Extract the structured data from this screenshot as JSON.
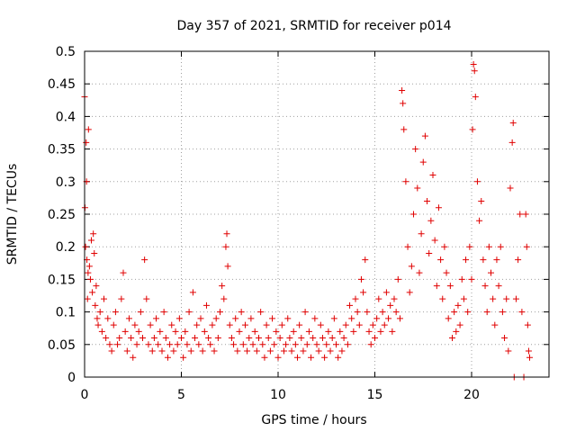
{
  "chart_data": {
    "type": "scatter",
    "title": "Day 357 of 2021, SRMTID for receiver p014",
    "xlabel": "GPS time / hours",
    "ylabel": "SRMTID / TECUs",
    "xlim": [
      0,
      24
    ],
    "ylim": [
      0,
      0.5
    ],
    "x_ticks": [
      0,
      5,
      10,
      15,
      20
    ],
    "x_tick_labels": [
      "0",
      "5",
      "10",
      "15",
      "20"
    ],
    "y_ticks": [
      0,
      0.05,
      0.1,
      0.15,
      0.2,
      0.25,
      0.3,
      0.35,
      0.4,
      0.45,
      0.5
    ],
    "y_tick_labels": [
      "0",
      "0.05",
      "0.1",
      "0.15",
      "0.2",
      "0.25",
      "0.3",
      "0.35",
      "0.4",
      "0.45",
      "0.5"
    ],
    "grid": true,
    "marker": "+",
    "color": "#e00000",
    "series": [
      {
        "name": "SRMTID",
        "points": [
          [
            0.0,
            0.43
          ],
          [
            0.02,
            0.26
          ],
          [
            0.05,
            0.2
          ],
          [
            0.08,
            0.36
          ],
          [
            0.1,
            0.3
          ],
          [
            0.12,
            0.18
          ],
          [
            0.15,
            0.12
          ],
          [
            0.18,
            0.16
          ],
          [
            0.2,
            0.38
          ],
          [
            0.25,
            0.17
          ],
          [
            0.3,
            0.15
          ],
          [
            0.35,
            0.21
          ],
          [
            0.4,
            0.13
          ],
          [
            0.45,
            0.22
          ],
          [
            0.5,
            0.19
          ],
          [
            0.55,
            0.11
          ],
          [
            0.6,
            0.14
          ],
          [
            0.65,
            0.09
          ],
          [
            0.7,
            0.08
          ],
          [
            0.8,
            0.1
          ],
          [
            0.9,
            0.07
          ],
          [
            1.0,
            0.12
          ],
          [
            1.1,
            0.06
          ],
          [
            1.2,
            0.09
          ],
          [
            1.3,
            0.05
          ],
          [
            1.4,
            0.04
          ],
          [
            1.5,
            0.08
          ],
          [
            1.6,
            0.1
          ],
          [
            1.7,
            0.05
          ],
          [
            1.8,
            0.06
          ],
          [
            1.9,
            0.12
          ],
          [
            2.0,
            0.16
          ],
          [
            2.1,
            0.07
          ],
          [
            2.2,
            0.04
          ],
          [
            2.3,
            0.09
          ],
          [
            2.4,
            0.06
          ],
          [
            2.5,
            0.03
          ],
          [
            2.6,
            0.08
          ],
          [
            2.7,
            0.05
          ],
          [
            2.8,
            0.07
          ],
          [
            2.9,
            0.1
          ],
          [
            3.0,
            0.06
          ],
          [
            3.1,
            0.18
          ],
          [
            3.2,
            0.12
          ],
          [
            3.3,
            0.05
          ],
          [
            3.4,
            0.08
          ],
          [
            3.5,
            0.04
          ],
          [
            3.6,
            0.06
          ],
          [
            3.7,
            0.09
          ],
          [
            3.8,
            0.05
          ],
          [
            3.9,
            0.07
          ],
          [
            4.0,
            0.04
          ],
          [
            4.1,
            0.1
          ],
          [
            4.2,
            0.06
          ],
          [
            4.3,
            0.03
          ],
          [
            4.4,
            0.05
          ],
          [
            4.5,
            0.08
          ],
          [
            4.6,
            0.04
          ],
          [
            4.7,
            0.07
          ],
          [
            4.8,
            0.05
          ],
          [
            4.9,
            0.09
          ],
          [
            5.0,
            0.06
          ],
          [
            5.1,
            0.03
          ],
          [
            5.2,
            0.07
          ],
          [
            5.3,
            0.05
          ],
          [
            5.4,
            0.1
          ],
          [
            5.5,
            0.04
          ],
          [
            5.6,
            0.13
          ],
          [
            5.7,
            0.06
          ],
          [
            5.8,
            0.08
          ],
          [
            5.9,
            0.05
          ],
          [
            6.0,
            0.09
          ],
          [
            6.1,
            0.04
          ],
          [
            6.2,
            0.07
          ],
          [
            6.3,
            0.11
          ],
          [
            6.4,
            0.06
          ],
          [
            6.5,
            0.05
          ],
          [
            6.6,
            0.08
          ],
          [
            6.7,
            0.04
          ],
          [
            6.8,
            0.09
          ],
          [
            6.9,
            0.06
          ],
          [
            7.0,
            0.1
          ],
          [
            7.1,
            0.14
          ],
          [
            7.2,
            0.12
          ],
          [
            7.3,
            0.2
          ],
          [
            7.35,
            0.22
          ],
          [
            7.4,
            0.17
          ],
          [
            7.5,
            0.08
          ],
          [
            7.6,
            0.06
          ],
          [
            7.7,
            0.05
          ],
          [
            7.8,
            0.09
          ],
          [
            7.9,
            0.04
          ],
          [
            8.0,
            0.07
          ],
          [
            8.1,
            0.1
          ],
          [
            8.2,
            0.05
          ],
          [
            8.3,
            0.08
          ],
          [
            8.4,
            0.04
          ],
          [
            8.5,
            0.06
          ],
          [
            8.6,
            0.09
          ],
          [
            8.7,
            0.05
          ],
          [
            8.8,
            0.07
          ],
          [
            8.9,
            0.04
          ],
          [
            9.0,
            0.06
          ],
          [
            9.1,
            0.1
          ],
          [
            9.2,
            0.05
          ],
          [
            9.3,
            0.03
          ],
          [
            9.4,
            0.08
          ],
          [
            9.5,
            0.06
          ],
          [
            9.6,
            0.04
          ],
          [
            9.7,
            0.09
          ],
          [
            9.8,
            0.05
          ],
          [
            9.9,
            0.07
          ],
          [
            10.0,
            0.03
          ],
          [
            10.1,
            0.06
          ],
          [
            10.2,
            0.08
          ],
          [
            10.3,
            0.04
          ],
          [
            10.4,
            0.05
          ],
          [
            10.5,
            0.09
          ],
          [
            10.6,
            0.06
          ],
          [
            10.7,
            0.04
          ],
          [
            10.8,
            0.07
          ],
          [
            10.9,
            0.05
          ],
          [
            11.0,
            0.03
          ],
          [
            11.1,
            0.08
          ],
          [
            11.2,
            0.06
          ],
          [
            11.3,
            0.04
          ],
          [
            11.4,
            0.1
          ],
          [
            11.5,
            0.05
          ],
          [
            11.6,
            0.07
          ],
          [
            11.7,
            0.03
          ],
          [
            11.8,
            0.06
          ],
          [
            11.9,
            0.09
          ],
          [
            12.0,
            0.05
          ],
          [
            12.1,
            0.04
          ],
          [
            12.2,
            0.08
          ],
          [
            12.3,
            0.06
          ],
          [
            12.4,
            0.03
          ],
          [
            12.5,
            0.05
          ],
          [
            12.6,
            0.07
          ],
          [
            12.7,
            0.04
          ],
          [
            12.8,
            0.06
          ],
          [
            12.9,
            0.09
          ],
          [
            13.0,
            0.05
          ],
          [
            13.1,
            0.03
          ],
          [
            13.2,
            0.07
          ],
          [
            13.3,
            0.04
          ],
          [
            13.4,
            0.06
          ],
          [
            13.5,
            0.08
          ],
          [
            13.6,
            0.05
          ],
          [
            13.7,
            0.11
          ],
          [
            13.8,
            0.09
          ],
          [
            13.9,
            0.07
          ],
          [
            14.0,
            0.12
          ],
          [
            14.1,
            0.1
          ],
          [
            14.2,
            0.08
          ],
          [
            14.3,
            0.15
          ],
          [
            14.4,
            0.13
          ],
          [
            14.5,
            0.18
          ],
          [
            14.6,
            0.1
          ],
          [
            14.7,
            0.07
          ],
          [
            14.8,
            0.05
          ],
          [
            14.9,
            0.08
          ],
          [
            15.0,
            0.06
          ],
          [
            15.1,
            0.09
          ],
          [
            15.2,
            0.12
          ],
          [
            15.3,
            0.07
          ],
          [
            15.4,
            0.1
          ],
          [
            15.5,
            0.08
          ],
          [
            15.6,
            0.13
          ],
          [
            15.7,
            0.09
          ],
          [
            15.8,
            0.11
          ],
          [
            15.9,
            0.07
          ],
          [
            16.0,
            0.12
          ],
          [
            16.1,
            0.1
          ],
          [
            16.2,
            0.15
          ],
          [
            16.3,
            0.09
          ],
          [
            16.4,
            0.44
          ],
          [
            16.45,
            0.42
          ],
          [
            16.5,
            0.38
          ],
          [
            16.6,
            0.3
          ],
          [
            16.7,
            0.2
          ],
          [
            16.8,
            0.13
          ],
          [
            16.9,
            0.17
          ],
          [
            17.0,
            0.25
          ],
          [
            17.1,
            0.35
          ],
          [
            17.2,
            0.29
          ],
          [
            17.3,
            0.16
          ],
          [
            17.4,
            0.22
          ],
          [
            17.5,
            0.33
          ],
          [
            17.6,
            0.37
          ],
          [
            17.7,
            0.27
          ],
          [
            17.8,
            0.19
          ],
          [
            17.9,
            0.24
          ],
          [
            18.0,
            0.31
          ],
          [
            18.1,
            0.21
          ],
          [
            18.2,
            0.14
          ],
          [
            18.3,
            0.26
          ],
          [
            18.4,
            0.18
          ],
          [
            18.5,
            0.12
          ],
          [
            18.6,
            0.2
          ],
          [
            18.7,
            0.16
          ],
          [
            18.8,
            0.09
          ],
          [
            18.9,
            0.14
          ],
          [
            19.0,
            0.06
          ],
          [
            19.1,
            0.1
          ],
          [
            19.2,
            0.07
          ],
          [
            19.3,
            0.11
          ],
          [
            19.4,
            0.08
          ],
          [
            19.5,
            0.15
          ],
          [
            19.6,
            0.12
          ],
          [
            19.7,
            0.18
          ],
          [
            19.8,
            0.1
          ],
          [
            19.9,
            0.2
          ],
          [
            20.0,
            0.15
          ],
          [
            20.05,
            0.38
          ],
          [
            20.1,
            0.48
          ],
          [
            20.15,
            0.47
          ],
          [
            20.2,
            0.43
          ],
          [
            20.3,
            0.3
          ],
          [
            20.4,
            0.24
          ],
          [
            20.5,
            0.27
          ],
          [
            20.6,
            0.18
          ],
          [
            20.7,
            0.14
          ],
          [
            20.8,
            0.1
          ],
          [
            20.9,
            0.2
          ],
          [
            21.0,
            0.16
          ],
          [
            21.1,
            0.12
          ],
          [
            21.2,
            0.08
          ],
          [
            21.3,
            0.18
          ],
          [
            21.4,
            0.14
          ],
          [
            21.5,
            0.2
          ],
          [
            21.6,
            0.1
          ],
          [
            21.7,
            0.06
          ],
          [
            21.8,
            0.12
          ],
          [
            21.9,
            0.04
          ],
          [
            22.0,
            0.29
          ],
          [
            22.1,
            0.36
          ],
          [
            22.15,
            0.39
          ],
          [
            22.2,
            0.0
          ],
          [
            22.3,
            0.12
          ],
          [
            22.4,
            0.18
          ],
          [
            22.5,
            0.25
          ],
          [
            22.6,
            0.1
          ],
          [
            22.7,
            0.0
          ],
          [
            22.8,
            0.25
          ],
          [
            22.85,
            0.2
          ],
          [
            22.9,
            0.08
          ],
          [
            22.95,
            0.04
          ],
          [
            23.0,
            0.03
          ]
        ]
      }
    ]
  }
}
